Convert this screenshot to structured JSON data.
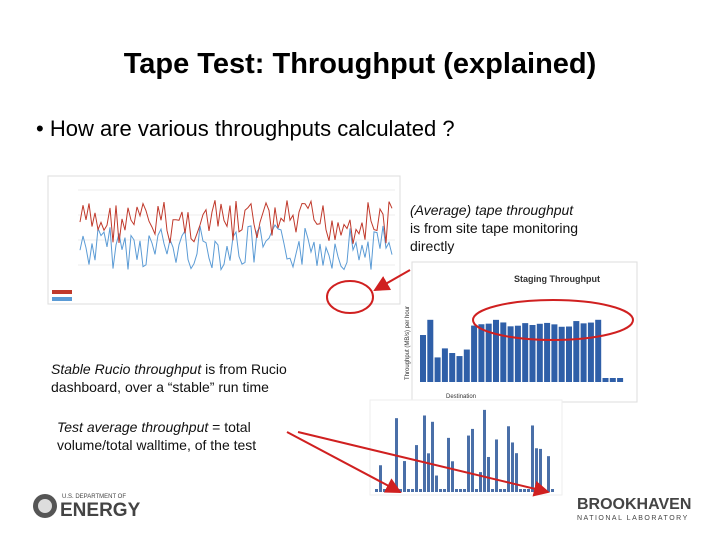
{
  "header": {
    "title": "Tape Test: Throughput (explained)"
  },
  "bullet": "How are various throughputs calculated ?",
  "annotations": [
    {
      "emphasis": "(Average) tape throughput",
      "text": "is from site tape monitoring directly"
    },
    {
      "emphasis": "Stable Rucio throughput",
      "text": " is from Rucio dashboard, over a “stable” run time"
    },
    {
      "emphasis": "Test average throughput",
      "text": " = total volume/total walltime, of the test"
    }
  ],
  "staging_chart": {
    "title": "Staging Throughput",
    "x_label": "Destination",
    "y_label": "Throughput (MB/s) per hour"
  },
  "logos": {
    "doe_top": "U.S. DEPARTMENT OF",
    "doe_main": "ENERGY",
    "bnl_main": "BROOKHAVEN",
    "bnl_sub": "NATIONAL LABORATORY"
  }
}
